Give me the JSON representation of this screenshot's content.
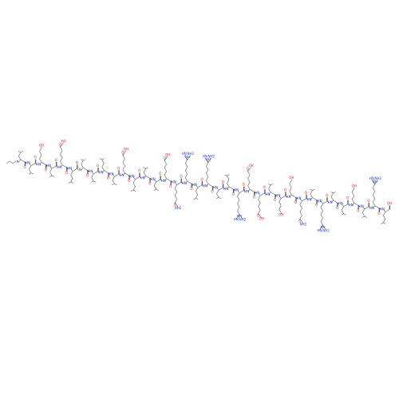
{
  "molecule": {
    "residues": [
      {
        "amide": "N",
        "carbonyl": "O",
        "side": []
      },
      {
        "amide": "HN",
        "carbonyl": "O",
        "side": []
      },
      {
        "amide": "HN",
        "carbonyl": "O",
        "side": [
          "OH"
        ]
      },
      {
        "amide": "HN",
        "carbonyl": "O",
        "side": []
      },
      {
        "amide": "HN",
        "carbonyl": "O",
        "side": [
          "O",
          "HO"
        ]
      },
      {
        "amide": "HN",
        "carbonyl": "O",
        "side": []
      },
      {
        "amide": "N",
        "carbonyl": "O",
        "side": []
      },
      {
        "amide": "HN",
        "carbonyl": "O",
        "side": []
      },
      {
        "amide": "HN",
        "carbonyl": "O",
        "side": []
      },
      {
        "amide": "HN",
        "carbonyl": "O",
        "side": []
      },
      {
        "amide": "HN",
        "carbonyl": "O",
        "side": [
          "O",
          "OH"
        ]
      },
      {
        "amide": "HN",
        "carbonyl": "O",
        "side": []
      },
      {
        "amide": "HN",
        "carbonyl": "O",
        "side": []
      },
      {
        "amide": "HN",
        "carbonyl": "O",
        "side": []
      },
      {
        "amide": "HN",
        "carbonyl": "O",
        "side": [
          "O",
          "OH"
        ]
      },
      {
        "amide": "HN",
        "carbonyl": "O",
        "side": [
          "O",
          "NH2"
        ]
      },
      {
        "amide": "HN",
        "carbonyl": "O",
        "side": [
          "NH",
          "NH2",
          "HN"
        ]
      },
      {
        "amide": "HN",
        "carbonyl": "O",
        "side": []
      },
      {
        "amide": "HN",
        "carbonyl": "O",
        "side": [
          "NH",
          "NH2",
          "HN"
        ]
      },
      {
        "amide": "HN",
        "carbonyl": "O",
        "side": []
      },
      {
        "amide": "HN",
        "carbonyl": "O",
        "side": []
      },
      {
        "amide": "HN",
        "carbonyl": "O",
        "side": [
          "NH",
          "NH2",
          "HN"
        ]
      },
      {
        "amide": "HN",
        "carbonyl": "O",
        "side": [
          "O",
          "OH"
        ]
      },
      {
        "amide": "HN",
        "carbonyl": "O",
        "side": [
          "O",
          "OH"
        ]
      },
      {
        "amide": "HN",
        "carbonyl": "O",
        "side": []
      },
      {
        "amide": "HN",
        "carbonyl": "O",
        "side": [
          "OH"
        ]
      },
      {
        "amide": "HN",
        "carbonyl": "O",
        "side": [
          "OH"
        ]
      },
      {
        "amide": "HN",
        "carbonyl": "O",
        "side": [
          "O",
          "NH2"
        ]
      },
      {
        "amide": "HN",
        "carbonyl": "O",
        "side": []
      },
      {
        "amide": "HN",
        "carbonyl": "O",
        "side": [
          "NH",
          "NH2",
          "HN"
        ]
      },
      {
        "amide": "HN",
        "carbonyl": "O",
        "side": []
      },
      {
        "amide": "HN",
        "carbonyl": "O",
        "side": []
      },
      {
        "amide": "HN",
        "carbonyl": "O",
        "side": [
          "OH"
        ]
      },
      {
        "amide": "HN",
        "carbonyl": "O",
        "side": []
      },
      {
        "amide": "HN",
        "carbonyl": "O",
        "side": [
          "NH",
          "NH2",
          "HN"
        ]
      },
      {
        "amide": "HN",
        "carbonyl": "OH",
        "side": []
      }
    ]
  }
}
